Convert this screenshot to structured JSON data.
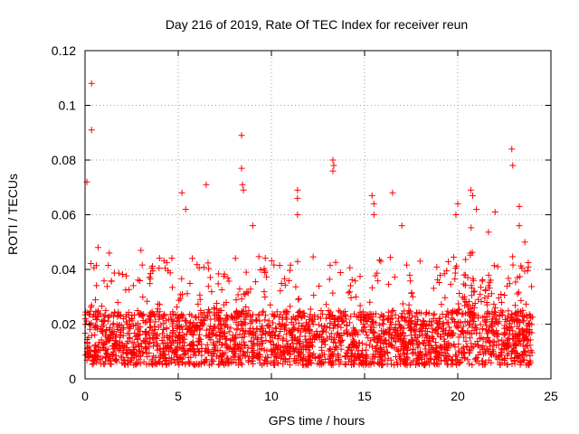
{
  "chart_data": {
    "type": "scatter",
    "title": "Day 216 of 2019, Rate Of TEC Index for receiver reun",
    "xlabel": "GPS time / hours",
    "ylabel": "ROTI / TECUs",
    "xlim": [
      0,
      25
    ],
    "ylim": [
      0,
      0.12
    ],
    "xticks": [
      0,
      5,
      10,
      15,
      20,
      25
    ],
    "xtick_labels": [
      "0",
      "5",
      "10",
      "15",
      "20",
      "25"
    ],
    "yticks": [
      0,
      0.02,
      0.04,
      0.06,
      0.08,
      0.1,
      0.12
    ],
    "ytick_labels": [
      "0",
      "0.02",
      "0.04",
      "0.06",
      "0.08",
      "0.1",
      "0.12"
    ],
    "grid": true,
    "marker": "+",
    "series_color": "#ff0000",
    "series": [
      {
        "name": "ROTI",
        "dense_band": {
          "x_range": [
            0,
            24
          ],
          "typical_y_range": [
            0.005,
            0.025
          ]
        },
        "notable_points": [
          {
            "x": 0.1,
            "y": 0.072
          },
          {
            "x": 0.35,
            "y": 0.108
          },
          {
            "x": 0.35,
            "y": 0.091
          },
          {
            "x": 0.7,
            "y": 0.048
          },
          {
            "x": 1.3,
            "y": 0.046
          },
          {
            "x": 3.0,
            "y": 0.047
          },
          {
            "x": 5.2,
            "y": 0.068
          },
          {
            "x": 5.4,
            "y": 0.062
          },
          {
            "x": 6.5,
            "y": 0.071
          },
          {
            "x": 8.4,
            "y": 0.089
          },
          {
            "x": 8.4,
            "y": 0.077
          },
          {
            "x": 8.45,
            "y": 0.071
          },
          {
            "x": 8.5,
            "y": 0.069
          },
          {
            "x": 9.0,
            "y": 0.056
          },
          {
            "x": 11.4,
            "y": 0.069
          },
          {
            "x": 11.4,
            "y": 0.066
          },
          {
            "x": 11.4,
            "y": 0.06
          },
          {
            "x": 13.3,
            "y": 0.08
          },
          {
            "x": 13.35,
            "y": 0.078
          },
          {
            "x": 13.3,
            "y": 0.076
          },
          {
            "x": 15.4,
            "y": 0.067
          },
          {
            "x": 15.5,
            "y": 0.064
          },
          {
            "x": 15.5,
            "y": 0.06
          },
          {
            "x": 16.5,
            "y": 0.068
          },
          {
            "x": 17.0,
            "y": 0.056
          },
          {
            "x": 19.9,
            "y": 0.06
          },
          {
            "x": 20.0,
            "y": 0.064
          },
          {
            "x": 20.7,
            "y": 0.069
          },
          {
            "x": 20.8,
            "y": 0.067
          },
          {
            "x": 21.0,
            "y": 0.062
          },
          {
            "x": 22.0,
            "y": 0.061
          },
          {
            "x": 22.9,
            "y": 0.084
          },
          {
            "x": 22.95,
            "y": 0.078
          },
          {
            "x": 23.3,
            "y": 0.063
          },
          {
            "x": 23.3,
            "y": 0.056
          },
          {
            "x": 23.6,
            "y": 0.05
          }
        ]
      }
    ]
  }
}
